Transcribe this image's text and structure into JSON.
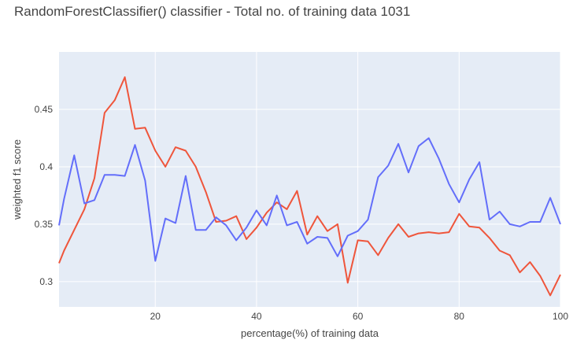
{
  "chart_data": {
    "type": "line",
    "title": "RandomForestClassifier() classifier - Total no. of training data 1031",
    "xlabel": "percentage(%) of training data",
    "ylabel": "weighted f1 score",
    "xlim": [
      1,
      100
    ],
    "ylim": [
      0.278,
      0.5
    ],
    "grid": true,
    "plot_background": "#e5ecf6",
    "x_ticks": [
      20,
      40,
      60,
      80,
      100
    ],
    "y_ticks": [
      0.3,
      0.35,
      0.4,
      0.45
    ],
    "y_tick_labels": [
      "0.3",
      "0.35",
      "0.4",
      "0.45"
    ],
    "series": [
      {
        "color": "#EF553B",
        "x": [
          1,
          2,
          4,
          6,
          8,
          10,
          12,
          14,
          16,
          18,
          20,
          22,
          24,
          26,
          28,
          30,
          32,
          34,
          36,
          38,
          40,
          42,
          44,
          46,
          48,
          50,
          52,
          54,
          56,
          58,
          60,
          62,
          64,
          66,
          68,
          70,
          72,
          74,
          76,
          78,
          80,
          82,
          84,
          86,
          88,
          90,
          92,
          94,
          96,
          98,
          100
        ],
        "values": [
          0.316,
          0.327,
          0.345,
          0.363,
          0.39,
          0.447,
          0.458,
          0.478,
          0.433,
          0.434,
          0.414,
          0.4,
          0.417,
          0.414,
          0.4,
          0.378,
          0.352,
          0.353,
          0.357,
          0.337,
          0.347,
          0.36,
          0.369,
          0.363,
          0.379,
          0.341,
          0.357,
          0.344,
          0.35,
          0.299,
          0.336,
          0.335,
          0.323,
          0.338,
          0.35,
          0.339,
          0.342,
          0.343,
          0.342,
          0.343,
          0.359,
          0.348,
          0.347,
          0.338,
          0.327,
          0.323,
          0.308,
          0.317,
          0.305,
          0.288,
          0.306
        ]
      },
      {
        "color": "#636EFA",
        "x": [
          1,
          2,
          4,
          6,
          8,
          10,
          12,
          14,
          16,
          18,
          20,
          22,
          24,
          26,
          28,
          30,
          32,
          34,
          36,
          38,
          40,
          42,
          44,
          46,
          48,
          50,
          52,
          54,
          56,
          58,
          60,
          62,
          64,
          66,
          68,
          70,
          72,
          74,
          76,
          78,
          80,
          82,
          84,
          86,
          88,
          90,
          92,
          94,
          96,
          98,
          100
        ],
        "values": [
          0.349,
          0.372,
          0.41,
          0.368,
          0.371,
          0.393,
          0.393,
          0.392,
          0.419,
          0.388,
          0.318,
          0.355,
          0.351,
          0.392,
          0.345,
          0.345,
          0.356,
          0.349,
          0.336,
          0.347,
          0.362,
          0.349,
          0.375,
          0.349,
          0.352,
          0.333,
          0.339,
          0.338,
          0.322,
          0.34,
          0.344,
          0.354,
          0.391,
          0.401,
          0.42,
          0.395,
          0.418,
          0.425,
          0.407,
          0.385,
          0.369,
          0.389,
          0.404,
          0.354,
          0.361,
          0.35,
          0.348,
          0.352,
          0.352,
          0.373,
          0.35
        ]
      }
    ]
  }
}
